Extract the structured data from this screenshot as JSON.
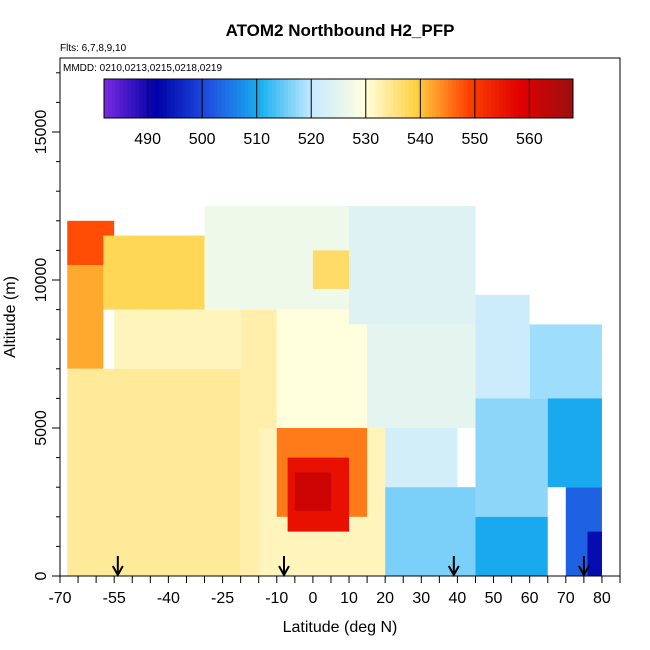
{
  "chart_data": {
    "type": "heatmap",
    "title": "ATOM2 Northbound H2_PFP",
    "flights_note": "Flts: 6,7,8,9,10",
    "dates_note": "MMDD: 0210,0213,0215,0218,0219",
    "xlabel": "Latitude (deg N)",
    "ylabel": "Altitude (m)",
    "xlim": [
      -70,
      85
    ],
    "ylim": [
      0,
      17500
    ],
    "x_ticks": [
      {
        "value": -70,
        "label": "-70"
      },
      {
        "value": -55,
        "label": "-55"
      },
      {
        "value": -40,
        "label": "-40"
      },
      {
        "value": -25,
        "label": "-25"
      },
      {
        "value": -10,
        "label": "-10"
      },
      {
        "value": 0,
        "label": "0"
      },
      {
        "value": 10,
        "label": "10"
      },
      {
        "value": 20,
        "label": "20"
      },
      {
        "value": 30,
        "label": "30"
      },
      {
        "value": 40,
        "label": "40"
      },
      {
        "value": 50,
        "label": "50"
      },
      {
        "value": 60,
        "label": "60"
      },
      {
        "value": 70,
        "label": "70"
      },
      {
        "value": 80,
        "label": "80"
      }
    ],
    "y_ticks": [
      {
        "value": 0,
        "label": "0"
      },
      {
        "value": 5000,
        "label": "5000"
      },
      {
        "value": 10000,
        "label": "10000"
      },
      {
        "value": 15000,
        "label": "15000"
      }
    ],
    "colorbar": {
      "min": 482,
      "max": 568,
      "tick_values": [
        490,
        500,
        510,
        520,
        530,
        540,
        550,
        560
      ],
      "tick_labels": [
        "490",
        "500",
        "510",
        "520",
        "530",
        "540",
        "550",
        "560"
      ],
      "colors": [
        "#7a2be0",
        "#0000a8",
        "#1f4fe0",
        "#18b0f0",
        "#c8eaff",
        "#ffffe0",
        "#ffd040",
        "#ff4000",
        "#e00000",
        "#9a1010"
      ]
    },
    "profile_markers_lat": [
      -54,
      -8,
      39,
      75
    ],
    "regions": [
      {
        "lat": [
          -68,
          -55
        ],
        "alt": [
          10500,
          12000
        ],
        "value": 548
      },
      {
        "lat": [
          -68,
          -58
        ],
        "alt": [
          7000,
          10500
        ],
        "value": 542
      },
      {
        "lat": [
          -58,
          -30
        ],
        "alt": [
          9000,
          11500
        ],
        "value": 538
      },
      {
        "lat": [
          -68,
          -20
        ],
        "alt": [
          0,
          7000
        ],
        "value": 534
      },
      {
        "lat": [
          -55,
          -20
        ],
        "alt": [
          7000,
          9000
        ],
        "value": 532
      },
      {
        "lat": [
          -30,
          10
        ],
        "alt": [
          9000,
          12500
        ],
        "value": 527
      },
      {
        "lat": [
          -20,
          -10
        ],
        "alt": [
          0,
          9000
        ],
        "value": 533
      },
      {
        "lat": [
          -10,
          15
        ],
        "alt": [
          5000,
          9000
        ],
        "value": 530
      },
      {
        "lat": [
          0,
          12
        ],
        "alt": [
          9700,
          11000
        ],
        "value": 537
      },
      {
        "lat": [
          10,
          45
        ],
        "alt": [
          8500,
          12500
        ],
        "value": 524
      },
      {
        "lat": [
          15,
          45
        ],
        "alt": [
          5000,
          8500
        ],
        "value": 525
      },
      {
        "lat": [
          -15,
          20
        ],
        "alt": [
          0,
          5000
        ],
        "value": 532
      },
      {
        "lat": [
          -10,
          15
        ],
        "alt": [
          2000,
          5000
        ],
        "value": 545
      },
      {
        "lat": [
          -7,
          10
        ],
        "alt": [
          1500,
          4000
        ],
        "value": 556
      },
      {
        "lat": [
          -5,
          5
        ],
        "alt": [
          2200,
          3500
        ],
        "value": 561
      },
      {
        "lat": [
          20,
          40
        ],
        "alt": [
          3000,
          5000
        ],
        "value": 522
      },
      {
        "lat": [
          20,
          45
        ],
        "alt": [
          0,
          3000
        ],
        "value": 516
      },
      {
        "lat": [
          45,
          60
        ],
        "alt": [
          6000,
          9500
        ],
        "value": 521
      },
      {
        "lat": [
          45,
          65
        ],
        "alt": [
          2000,
          6000
        ],
        "value": 517
      },
      {
        "lat": [
          45,
          65
        ],
        "alt": [
          0,
          2000
        ],
        "value": 510
      },
      {
        "lat": [
          60,
          80
        ],
        "alt": [
          6000,
          8500
        ],
        "value": 518
      },
      {
        "lat": [
          65,
          80
        ],
        "alt": [
          3000,
          6000
        ],
        "value": 510
      },
      {
        "lat": [
          70,
          80
        ],
        "alt": [
          0,
          3000
        ],
        "value": 503
      },
      {
        "lat": [
          76,
          80
        ],
        "alt": [
          0,
          1500
        ],
        "value": 493
      }
    ]
  }
}
